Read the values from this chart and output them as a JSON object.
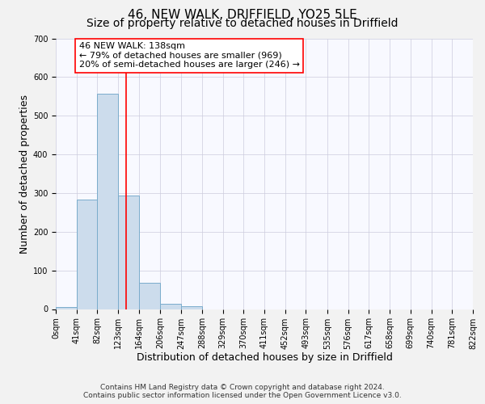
{
  "title": "46, NEW WALK, DRIFFIELD, YO25 5LE",
  "subtitle": "Size of property relative to detached houses in Driffield",
  "xlabel": "Distribution of detached houses by size in Driffield",
  "ylabel": "Number of detached properties",
  "bin_edges": [
    0,
    41,
    82,
    123,
    164,
    206,
    247,
    288,
    329,
    370,
    411,
    452,
    493,
    535,
    576,
    617,
    658,
    699,
    740,
    781,
    822
  ],
  "bin_counts": [
    6,
    283,
    557,
    293,
    67,
    14,
    8,
    0,
    0,
    0,
    0,
    0,
    0,
    0,
    0,
    0,
    0,
    0,
    0,
    0
  ],
  "bar_facecolor": "#ccdcec",
  "bar_edgecolor": "#7aaccc",
  "property_line_x": 138,
  "property_line_color": "red",
  "annotation_text": "46 NEW WALK: 138sqm\n← 79% of detached houses are smaller (969)\n20% of semi-detached houses are larger (246) →",
  "annotation_box_edgecolor": "red",
  "annotation_box_facecolor": "white",
  "ylim": [
    0,
    700
  ],
  "tick_labels": [
    "0sqm",
    "41sqm",
    "82sqm",
    "123sqm",
    "164sqm",
    "206sqm",
    "247sqm",
    "288sqm",
    "329sqm",
    "370sqm",
    "411sqm",
    "452sqm",
    "493sqm",
    "535sqm",
    "576sqm",
    "617sqm",
    "658sqm",
    "699sqm",
    "740sqm",
    "781sqm",
    "822sqm"
  ],
  "footer_line1": "Contains HM Land Registry data © Crown copyright and database right 2024.",
  "footer_line2": "Contains public sector information licensed under the Open Government Licence v3.0.",
  "title_fontsize": 11,
  "subtitle_fontsize": 10,
  "axis_label_fontsize": 9,
  "tick_fontsize": 7,
  "annotation_fontsize": 8,
  "footer_fontsize": 6.5,
  "background_color": "#f2f2f2",
  "plot_background_color": "#f8f9ff",
  "grid_color": "#ccccdd"
}
